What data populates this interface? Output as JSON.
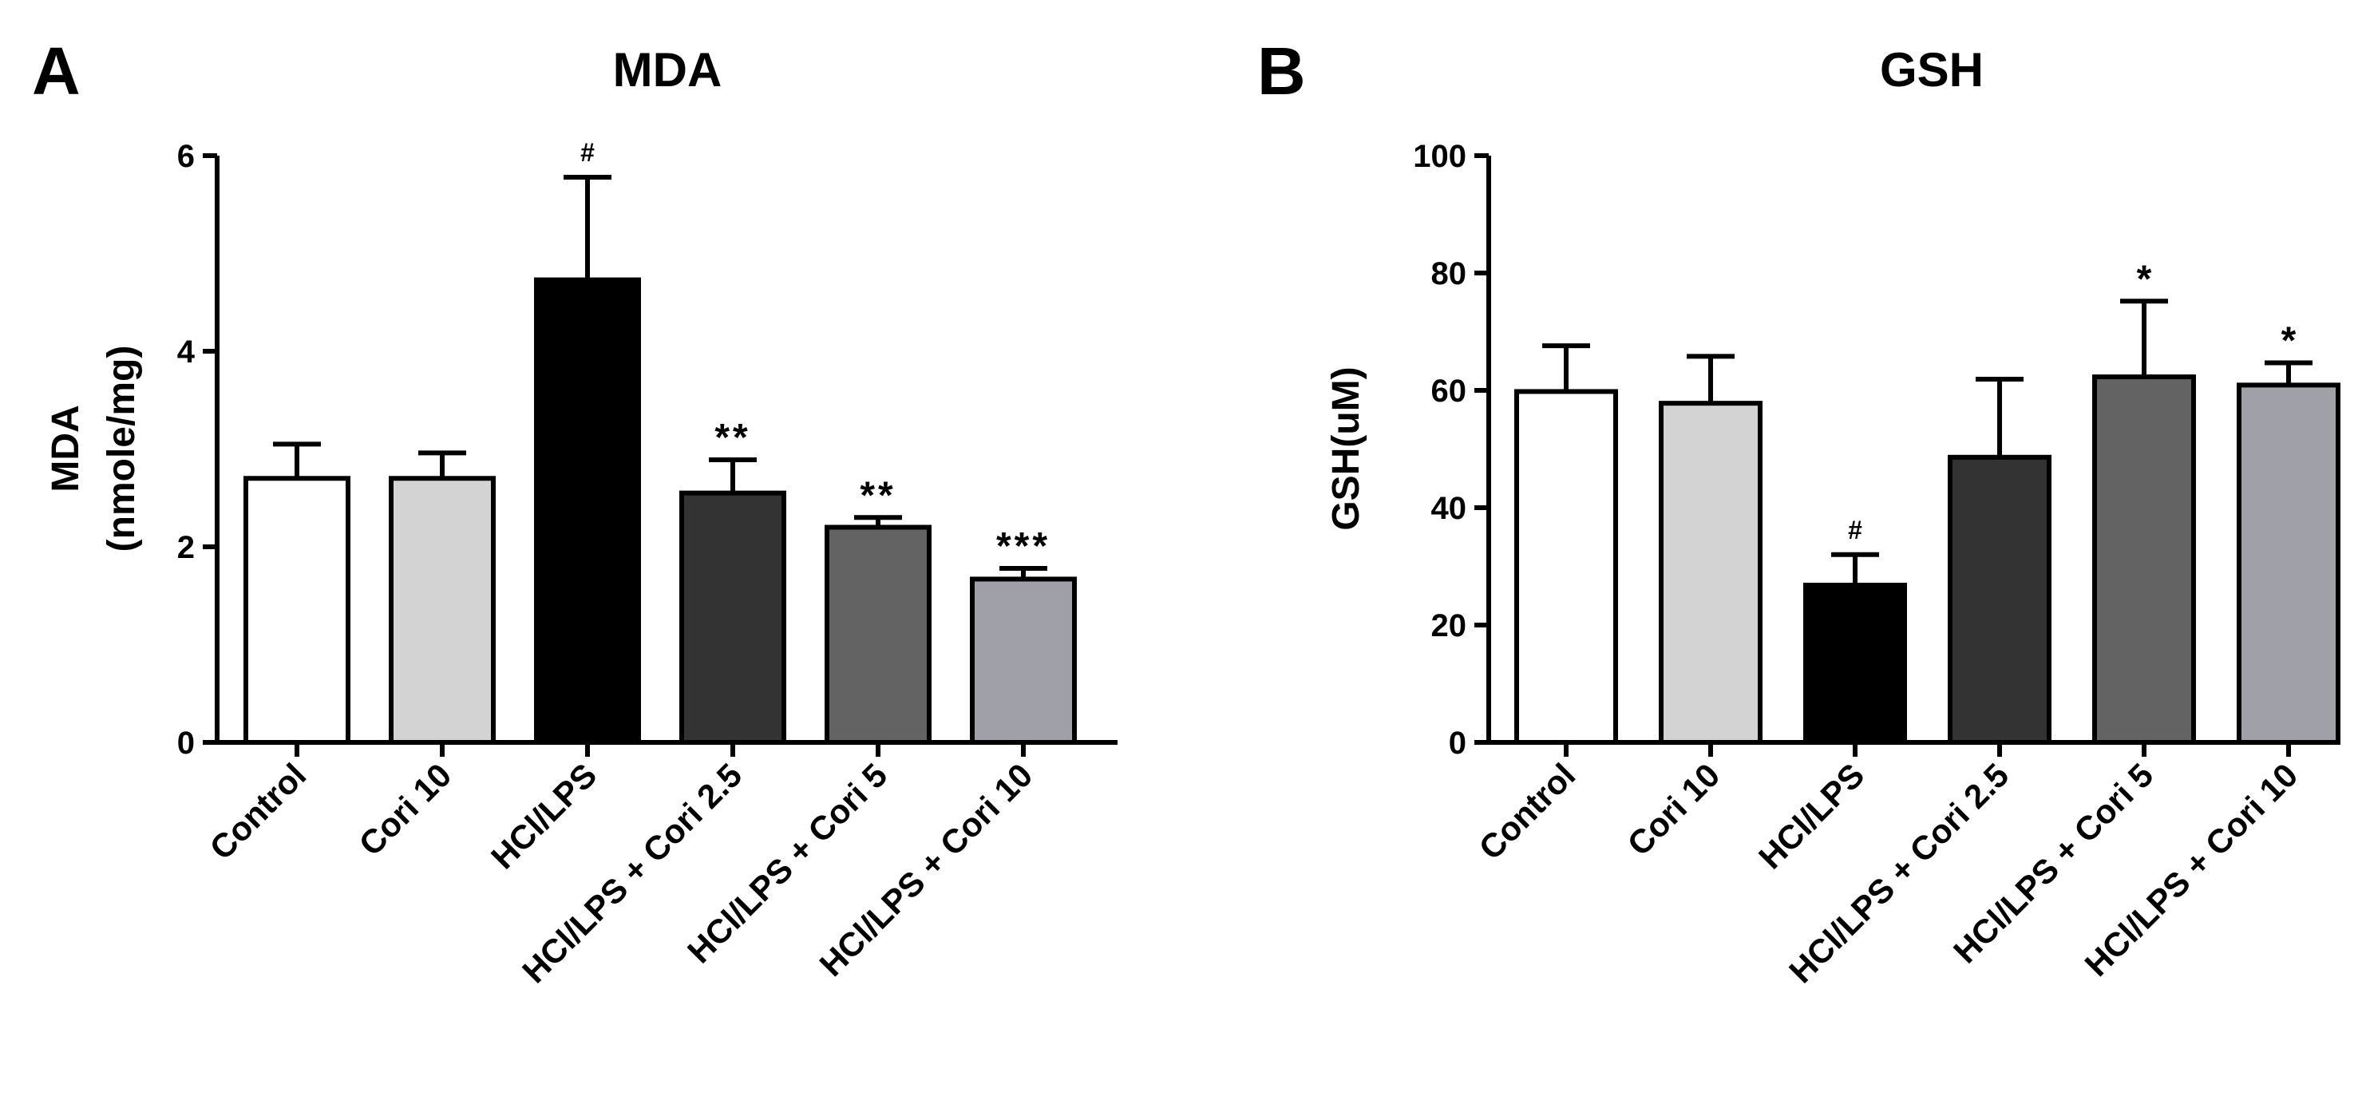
{
  "chart_data": [
    {
      "panel": "A",
      "type": "bar",
      "title": "MDA",
      "ylabel_lines": [
        "MDA",
        "(nmole/mg)"
      ],
      "xlabel": "",
      "ylim": [
        0,
        6
      ],
      "yticks": [
        0,
        2,
        4,
        6
      ],
      "categories": [
        "Control",
        "Cori 10",
        "HCl/LPS",
        "HCl/LPS + Cori 2.5",
        "HCl/LPS + Cori 5",
        "HCl/LPS + Cori 10"
      ],
      "values": [
        2.7,
        2.7,
        4.73,
        2.55,
        2.2,
        1.67
      ],
      "errors": [
        0.35,
        0.26,
        1.05,
        0.34,
        0.1,
        0.11
      ],
      "significance": [
        "",
        "",
        "#",
        "**",
        "**",
        "***"
      ],
      "bar_colors": [
        "#ffffff",
        "#d3d3d3",
        "#000000",
        "#333333",
        "#636363",
        "#a0a0a8"
      ]
    },
    {
      "panel": "B",
      "type": "bar",
      "title": "GSH",
      "ylabel_lines": [
        "GSH(uM)"
      ],
      "xlabel": "",
      "ylim": [
        0,
        100
      ],
      "yticks": [
        0,
        20,
        40,
        60,
        80,
        100
      ],
      "categories": [
        "Control",
        "Cori 10",
        "HCl/LPS",
        "HCl/LPS + Cori 2.5",
        "HCl/LPS + Cori 5",
        "HCl/LPS + Cori 10"
      ],
      "values": [
        59.8,
        57.8,
        26.8,
        48.6,
        62.3,
        60.9
      ],
      "errors": [
        7.8,
        8.0,
        5.2,
        13.3,
        12.9,
        3.8
      ],
      "significance": [
        "",
        "",
        "#",
        "",
        "*",
        "*"
      ],
      "bar_colors": [
        "#ffffff",
        "#d3d3d3",
        "#000000",
        "#333333",
        "#636363",
        "#a0a0a8"
      ]
    }
  ]
}
